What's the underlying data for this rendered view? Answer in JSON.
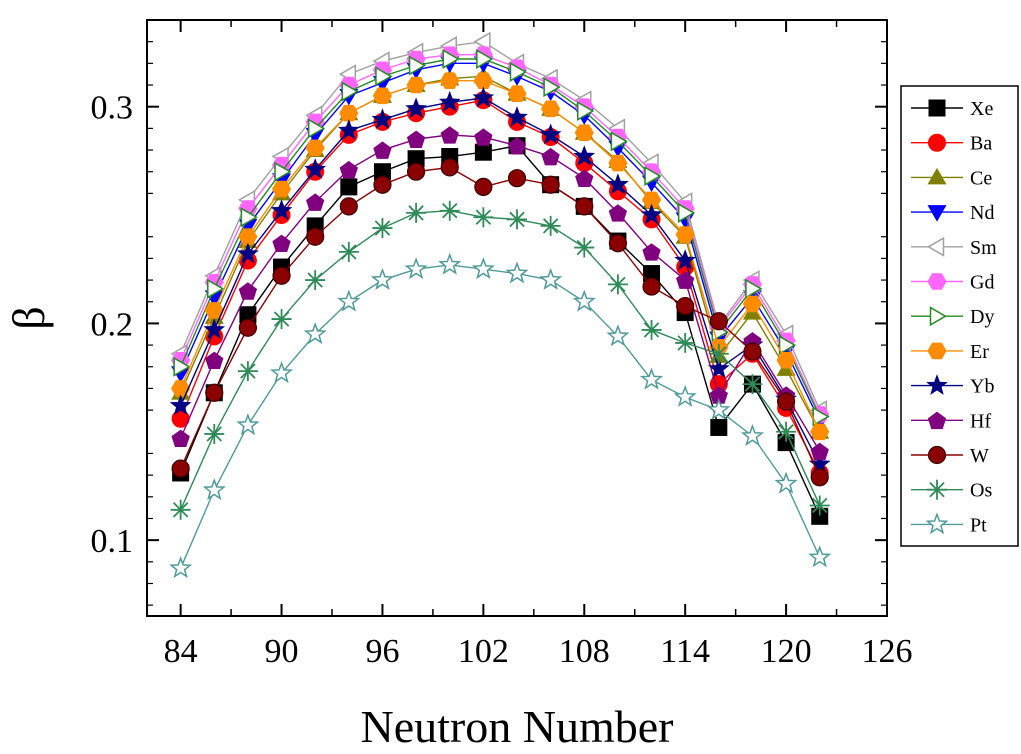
{
  "chart_data": {
    "type": "line",
    "xlabel": "Neutron Number",
    "ylabel": "β",
    "xlim": [
      82,
      126
    ],
    "ylim": [
      0.065,
      0.34
    ],
    "x_ticks": [
      "84",
      "90",
      "96",
      "102",
      "108",
      "114",
      "120",
      "126"
    ],
    "y_ticks": [
      "0.1",
      "0.2",
      "0.3"
    ],
    "grid": false,
    "legend_position": "right",
    "x": [
      84,
      86,
      88,
      90,
      92,
      94,
      96,
      98,
      100,
      102,
      104,
      106,
      108,
      110,
      112,
      114,
      116,
      118,
      120,
      122
    ],
    "series": [
      {
        "name": "Xe",
        "color": "#000000",
        "marker": "square",
        "values": [
          0.131,
          0.168,
          0.204,
          0.226,
          0.245,
          0.263,
          0.27,
          0.276,
          0.277,
          0.279,
          0.282,
          0.264,
          0.254,
          0.238,
          0.223,
          0.205,
          0.152,
          0.172,
          0.145,
          0.111
        ]
      },
      {
        "name": "Ba",
        "color": "#ff0000",
        "marker": "circle",
        "values": [
          0.156,
          0.194,
          0.229,
          0.25,
          0.27,
          0.287,
          0.293,
          0.297,
          0.3,
          0.303,
          0.293,
          0.286,
          0.274,
          0.261,
          0.248,
          0.226,
          0.172,
          0.186,
          0.161,
          0.131
        ]
      },
      {
        "name": "Ce",
        "color": "#808000",
        "marker": "triangle-up",
        "values": [
          0.168,
          0.203,
          0.238,
          0.26,
          0.28,
          0.297,
          0.305,
          0.31,
          0.313,
          0.314,
          0.306,
          0.299,
          0.288,
          0.275,
          0.256,
          0.24,
          0.185,
          0.205,
          0.179,
          0.15
        ]
      },
      {
        "name": "Nd",
        "color": "#0000ff",
        "marker": "triangle-down",
        "values": [
          0.177,
          0.212,
          0.245,
          0.266,
          0.287,
          0.305,
          0.311,
          0.317,
          0.32,
          0.32,
          0.314,
          0.307,
          0.296,
          0.281,
          0.265,
          0.248,
          0.193,
          0.212,
          0.187,
          0.155
        ]
      },
      {
        "name": "Sm",
        "color": "#a0a0a0",
        "marker": "triangle-left",
        "values": [
          0.186,
          0.222,
          0.257,
          0.277,
          0.296,
          0.315,
          0.321,
          0.325,
          0.328,
          0.33,
          0.32,
          0.313,
          0.303,
          0.29,
          0.274,
          0.256,
          0.199,
          0.22,
          0.195,
          0.16
        ]
      },
      {
        "name": "Gd",
        "color": "#ff66ff",
        "marker": "hexagon",
        "values": [
          0.183,
          0.219,
          0.253,
          0.273,
          0.293,
          0.31,
          0.317,
          0.322,
          0.324,
          0.324,
          0.318,
          0.31,
          0.3,
          0.286,
          0.27,
          0.253,
          0.198,
          0.218,
          0.192,
          0.158
        ]
      },
      {
        "name": "Dy",
        "color": "#228b22",
        "marker": "triangle-right",
        "values": [
          0.18,
          0.216,
          0.249,
          0.27,
          0.29,
          0.307,
          0.314,
          0.319,
          0.322,
          0.322,
          0.316,
          0.309,
          0.298,
          0.284,
          0.268,
          0.251,
          0.196,
          0.216,
          0.19,
          0.157
        ]
      },
      {
        "name": "Er",
        "color": "#ff8c00",
        "marker": "hexagon",
        "values": [
          0.17,
          0.206,
          0.24,
          0.262,
          0.281,
          0.297,
          0.305,
          0.31,
          0.312,
          0.312,
          0.306,
          0.299,
          0.288,
          0.274,
          0.257,
          0.241,
          0.189,
          0.209,
          0.183,
          0.15
        ]
      },
      {
        "name": "Yb",
        "color": "#000080",
        "marker": "star",
        "values": [
          0.162,
          0.197,
          0.232,
          0.252,
          0.271,
          0.289,
          0.294,
          0.299,
          0.302,
          0.304,
          0.295,
          0.287,
          0.277,
          0.264,
          0.25,
          0.229,
          0.179,
          0.19,
          0.165,
          0.135
        ]
      },
      {
        "name": "Hf",
        "color": "#800080",
        "marker": "pentagon",
        "values": [
          0.147,
          0.183,
          0.215,
          0.237,
          0.256,
          0.271,
          0.28,
          0.285,
          0.287,
          0.286,
          0.282,
          0.277,
          0.267,
          0.251,
          0.233,
          0.22,
          0.167,
          0.192,
          0.167,
          0.141
        ]
      },
      {
        "name": "W",
        "color": "#8b0000",
        "marker": "ball",
        "values": [
          0.133,
          0.168,
          0.198,
          0.222,
          0.24,
          0.254,
          0.264,
          0.27,
          0.272,
          0.263,
          0.267,
          0.264,
          0.254,
          0.237,
          0.217,
          0.208,
          0.201,
          0.187,
          0.164,
          0.129
        ]
      },
      {
        "name": "Os",
        "color": "#2e8b57",
        "marker": "asterisk",
        "values": [
          0.114,
          0.149,
          0.178,
          0.202,
          0.22,
          0.233,
          0.244,
          0.251,
          0.252,
          0.249,
          0.248,
          0.245,
          0.235,
          0.218,
          0.197,
          0.191,
          0.186,
          0.172,
          0.15,
          0.116
        ]
      },
      {
        "name": "Pt",
        "color": "#4f9a9a",
        "marker": "star-open",
        "values": [
          0.087,
          0.123,
          0.153,
          0.177,
          0.195,
          0.21,
          0.22,
          0.225,
          0.227,
          0.225,
          0.223,
          0.22,
          0.21,
          0.194,
          0.174,
          0.166,
          0.16,
          0.148,
          0.126,
          0.092
        ]
      }
    ]
  }
}
